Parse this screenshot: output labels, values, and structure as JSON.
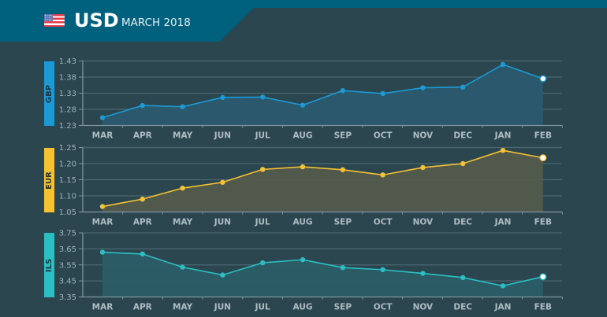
{
  "header": {
    "flag_icon": "us-flag-icon",
    "currency": "USD",
    "period": "MARCH 2018"
  },
  "colors": {
    "background": "#2c4650",
    "header": "#00617f",
    "GBP": "#1b9ad6",
    "EUR": "#f7c232",
    "ILS": "#2bbfc4"
  },
  "chart_data": [
    {
      "type": "area",
      "title": "GBP",
      "color": "#1b9ad6",
      "fill": "#2b5a6e",
      "categories": [
        "MAR",
        "APR",
        "MAY",
        "JUN",
        "JUL",
        "AUG",
        "SEP",
        "OCT",
        "NOV",
        "DEC",
        "JAN",
        "FEB"
      ],
      "values": [
        1.254,
        1.292,
        1.288,
        1.317,
        1.318,
        1.293,
        1.338,
        1.329,
        1.347,
        1.349,
        1.419,
        1.375
      ],
      "yticks": [
        "1.43",
        "1.38",
        "1.33",
        "1.28",
        "1.23"
      ],
      "ylim": [
        1.23,
        1.43
      ],
      "grid": true,
      "highlight_last": true
    },
    {
      "type": "area",
      "title": "EUR",
      "color": "#f7c232",
      "fill": "#535b4c",
      "categories": [
        "MAR",
        "APR",
        "MAY",
        "JUN",
        "JUL",
        "AUG",
        "SEP",
        "OCT",
        "NOV",
        "DEC",
        "JAN",
        "FEB"
      ],
      "values": [
        1.067,
        1.09,
        1.124,
        1.142,
        1.182,
        1.19,
        1.181,
        1.165,
        1.188,
        1.2,
        1.241,
        1.218
      ],
      "yticks": [
        "1.25",
        "1.20",
        "1.15",
        "1.10",
        "1.05"
      ],
      "ylim": [
        1.05,
        1.25
      ],
      "grid": true,
      "highlight_last": true
    },
    {
      "type": "area",
      "title": "ILS",
      "color": "#2bbfc4",
      "fill": "#2b5d66",
      "categories": [
        "MAR",
        "APR",
        "MAY",
        "JUN",
        "JUL",
        "AUG",
        "SEP",
        "OCT",
        "NOV",
        "DEC",
        "JAN",
        "FEB"
      ],
      "values": [
        3.629,
        3.618,
        3.536,
        3.487,
        3.563,
        3.582,
        3.533,
        3.52,
        3.497,
        3.471,
        3.419,
        3.476
      ],
      "yticks": [
        "3.75",
        "3.65",
        "3.55",
        "3.45",
        "3.35"
      ],
      "ylim": [
        3.35,
        3.75
      ],
      "grid": true,
      "highlight_last": true
    }
  ]
}
